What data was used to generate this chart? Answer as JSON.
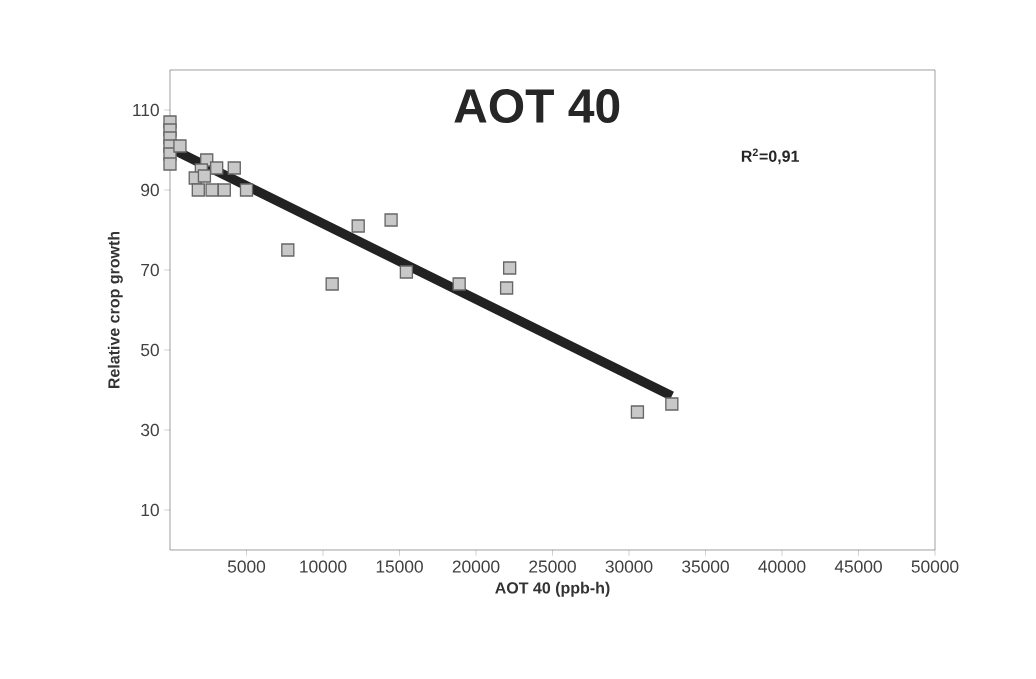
{
  "chart_data": {
    "type": "scatter",
    "title": "AOT 40",
    "xlabel": "AOT 40 (ppb-h)",
    "ylabel": "Relative crop growth",
    "annotations": [
      "R$^{2}$=0,91"
    ],
    "series": [
      {
        "color": "#c8c8c8",
        "marker": "square",
        "x": [
          0,
          0,
          0,
          0,
          0,
          0,
          650,
          2400,
          3050,
          4200,
          2050,
          1650,
          2250,
          1850,
          2750,
          3550,
          5000,
          7700,
          10600,
          12300,
          14450,
          15450,
          18900,
          22200,
          22000,
          30550,
          32800
        ],
        "values": [
          107,
          105,
          103,
          101,
          99,
          96.5,
          101,
          97.5,
          95.5,
          95.5,
          95,
          93,
          93.5,
          90,
          90,
          90,
          90,
          75,
          66.5,
          81,
          82.5,
          69.5,
          66.5,
          70.5,
          65.5,
          34.5,
          36.5
        ]
      },
      {
        "type": "line",
        "color": "#222222",
        "x": [
          0,
          32800
        ],
        "values": [
          100.5,
          38.5
        ]
      }
    ],
    "xlim": [
      0,
      50000
    ],
    "ylim": [
      0,
      120
    ],
    "xticks": [
      5000,
      10000,
      15000,
      20000,
      25000,
      30000,
      35000,
      40000,
      45000,
      50000
    ],
    "yticks": [
      10,
      30,
      50,
      70,
      90,
      110
    ]
  }
}
